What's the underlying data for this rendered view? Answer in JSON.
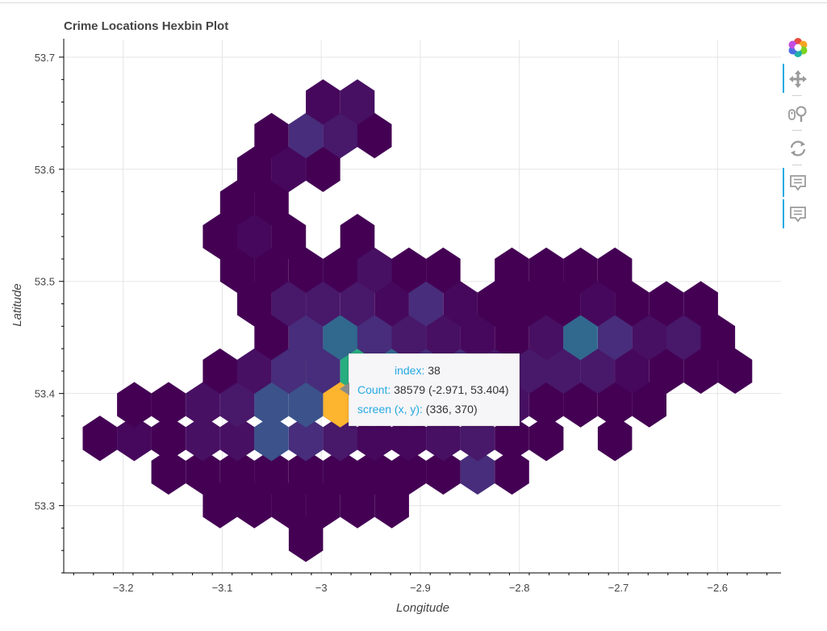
{
  "colors": {
    "accent": "#26aae1",
    "hover": "#fdb42f",
    "palette": [
      "#440154",
      "#46085c",
      "#471063",
      "#48186a",
      "#472d7b",
      "#3b528b",
      "#31688e",
      "#2c728e",
      "#21918c",
      "#28ae80"
    ]
  },
  "toolbar": {
    "tools": [
      {
        "name": "bokeh-logo-icon",
        "active": false
      },
      {
        "name": "pan-icon",
        "active": true
      },
      {
        "name": "wheel-zoom-icon",
        "active": false
      },
      {
        "name": "reset-icon",
        "active": false
      },
      {
        "name": "hover-icon",
        "active": true
      },
      {
        "name": "hover-icon-2",
        "active": true
      }
    ]
  },
  "tooltip": {
    "index_label": "index:",
    "index_value": "38",
    "count_label": "Count:",
    "count_value": "38579",
    "coord_text": "(-2.971, 53.404)",
    "screen_label": "screen (x, y):",
    "screen_value": "(336, 370)"
  },
  "chart_data": {
    "type": "heatmap",
    "subtype": "hexbin",
    "title": "Crime Locations Hexbin Plot",
    "xlabel": "Longitude",
    "ylabel": "Latitude",
    "xlim": [
      -3.26,
      -2.535
    ],
    "ylim": [
      53.24,
      53.715
    ],
    "grid": true,
    "x_ticks": [
      -3.2,
      -3.1,
      -3.0,
      -2.9,
      -2.8,
      -2.7,
      -2.6
    ],
    "x_tick_labels": [
      "−3.2",
      "−3.1",
      "−3",
      "−2.9",
      "−2.8",
      "−2.7",
      "−2.6"
    ],
    "y_ticks": [
      53.3,
      53.4,
      53.5,
      53.6,
      53.7
    ],
    "y_tick_labels": [
      "53.3",
      "53.4",
      "53.5",
      "53.6",
      "53.7"
    ],
    "hex_size": 0.0171,
    "hexes": [
      [
        -3.0155,
        53.27,
        0
      ],
      [
        -3.1022,
        53.3,
        0
      ],
      [
        -3.0675,
        53.3,
        0
      ],
      [
        -3.0328,
        53.3,
        0
      ],
      [
        -2.9982,
        53.3,
        0
      ],
      [
        -2.9635,
        53.3,
        0
      ],
      [
        -2.9288,
        53.3,
        0
      ],
      [
        -3.1542,
        53.33,
        0
      ],
      [
        -3.1195,
        53.33,
        0
      ],
      [
        -3.0848,
        53.33,
        0
      ],
      [
        -3.0502,
        53.33,
        0
      ],
      [
        -3.0155,
        53.33,
        0
      ],
      [
        -2.9808,
        53.33,
        0
      ],
      [
        -2.9462,
        53.33,
        0
      ],
      [
        -2.9115,
        53.33,
        0
      ],
      [
        -2.8768,
        53.33,
        0
      ],
      [
        -2.8422,
        53.33,
        4
      ],
      [
        -2.8075,
        53.33,
        0
      ],
      [
        -3.2235,
        53.36,
        0
      ],
      [
        -3.1888,
        53.36,
        1
      ],
      [
        -3.1542,
        53.36,
        0
      ],
      [
        -3.1195,
        53.36,
        2
      ],
      [
        -3.0848,
        53.36,
        2
      ],
      [
        -3.0502,
        53.36,
        5
      ],
      [
        -3.0155,
        53.36,
        4
      ],
      [
        -2.9808,
        53.36,
        3
      ],
      [
        -2.9462,
        53.36,
        1
      ],
      [
        -2.9115,
        53.36,
        1
      ],
      [
        -2.8768,
        53.36,
        2
      ],
      [
        -2.8422,
        53.36,
        3
      ],
      [
        -2.8075,
        53.36,
        0
      ],
      [
        -2.7728,
        53.36,
        0
      ],
      [
        -2.7035,
        53.36,
        0
      ],
      [
        -3.1888,
        53.39,
        0
      ],
      [
        -3.1542,
        53.39,
        0
      ],
      [
        -3.1195,
        53.39,
        2
      ],
      [
        -3.0848,
        53.39,
        3
      ],
      [
        -3.0502,
        53.39,
        5
      ],
      [
        -3.0155,
        53.39,
        5
      ],
      [
        -2.9808,
        53.39,
        3
      ],
      [
        -2.9462,
        53.39,
        2
      ],
      [
        -2.9115,
        53.39,
        2
      ],
      [
        -2.8768,
        53.39,
        1
      ],
      [
        -2.8422,
        53.39,
        2
      ],
      [
        -2.8075,
        53.39,
        2
      ],
      [
        -2.7728,
        53.39,
        0
      ],
      [
        -2.7382,
        53.39,
        0
      ],
      [
        -2.7035,
        53.39,
        0
      ],
      [
        -2.6688,
        53.39,
        0
      ],
      [
        -3.1022,
        53.42,
        0
      ],
      [
        -3.0675,
        53.42,
        2
      ],
      [
        -3.0328,
        53.42,
        4
      ],
      [
        -2.9982,
        53.42,
        4
      ],
      [
        -2.9635,
        53.42,
        9
      ],
      [
        -2.9288,
        53.42,
        6
      ],
      [
        -2.8942,
        53.42,
        4
      ],
      [
        -2.8595,
        53.42,
        4
      ],
      [
        -2.8248,
        53.42,
        3
      ],
      [
        -2.7902,
        53.42,
        3
      ],
      [
        -2.7555,
        53.42,
        3
      ],
      [
        -2.7208,
        53.42,
        3
      ],
      [
        -2.6862,
        53.42,
        1
      ],
      [
        -2.6515,
        53.42,
        0
      ],
      [
        -2.6168,
        53.42,
        0
      ],
      [
        -2.5822,
        53.42,
        0
      ],
      [
        -3.0502,
        53.45,
        0
      ],
      [
        -3.0155,
        53.45,
        4
      ],
      [
        -2.9808,
        53.45,
        6
      ],
      [
        -2.9462,
        53.45,
        4
      ],
      [
        -2.9115,
        53.45,
        3
      ],
      [
        -2.8768,
        53.45,
        2
      ],
      [
        -2.8422,
        53.45,
        1
      ],
      [
        -2.8075,
        53.45,
        0
      ],
      [
        -2.7728,
        53.45,
        2
      ],
      [
        -2.7382,
        53.45,
        6
      ],
      [
        -2.7035,
        53.45,
        4
      ],
      [
        -2.6688,
        53.45,
        2
      ],
      [
        -2.6342,
        53.45,
        3
      ],
      [
        -2.5995,
        53.45,
        0
      ],
      [
        -3.0675,
        53.48,
        0
      ],
      [
        -3.0328,
        53.48,
        3
      ],
      [
        -2.9982,
        53.48,
        3
      ],
      [
        -2.9635,
        53.48,
        3
      ],
      [
        -2.9288,
        53.48,
        1
      ],
      [
        -2.8942,
        53.48,
        4
      ],
      [
        -2.8595,
        53.48,
        1
      ],
      [
        -2.8248,
        53.48,
        0
      ],
      [
        -2.7902,
        53.48,
        0
      ],
      [
        -2.7555,
        53.48,
        0
      ],
      [
        -2.7208,
        53.48,
        1
      ],
      [
        -2.6862,
        53.48,
        0
      ],
      [
        -2.6515,
        53.48,
        0
      ],
      [
        -2.6168,
        53.48,
        0
      ],
      [
        -3.0848,
        53.51,
        0
      ],
      [
        -3.0502,
        53.51,
        0
      ],
      [
        -3.0155,
        53.51,
        0
      ],
      [
        -2.9808,
        53.51,
        0
      ],
      [
        -2.9462,
        53.51,
        2
      ],
      [
        -2.9115,
        53.51,
        0
      ],
      [
        -2.8768,
        53.51,
        0
      ],
      [
        -2.8075,
        53.51,
        0
      ],
      [
        -2.7728,
        53.51,
        0
      ],
      [
        -2.7382,
        53.51,
        0
      ],
      [
        -2.7035,
        53.51,
        0
      ],
      [
        -3.1022,
        53.54,
        0
      ],
      [
        -3.0675,
        53.54,
        1
      ],
      [
        -3.0328,
        53.54,
        0
      ],
      [
        -2.9635,
        53.54,
        0
      ],
      [
        -3.0848,
        53.57,
        0
      ],
      [
        -3.0502,
        53.57,
        0
      ],
      [
        -3.0675,
        53.6,
        0
      ],
      [
        -3.0328,
        53.6,
        1
      ],
      [
        -2.9982,
        53.6,
        0
      ],
      [
        -3.0502,
        53.63,
        0
      ],
      [
        -3.0155,
        53.63,
        4
      ],
      [
        -2.9808,
        53.63,
        3
      ],
      [
        -2.9462,
        53.63,
        0
      ],
      [
        -2.9982,
        53.66,
        1
      ],
      [
        -2.9635,
        53.66,
        2
      ]
    ],
    "highlighted": [
      -2.9808,
      53.39
    ]
  }
}
